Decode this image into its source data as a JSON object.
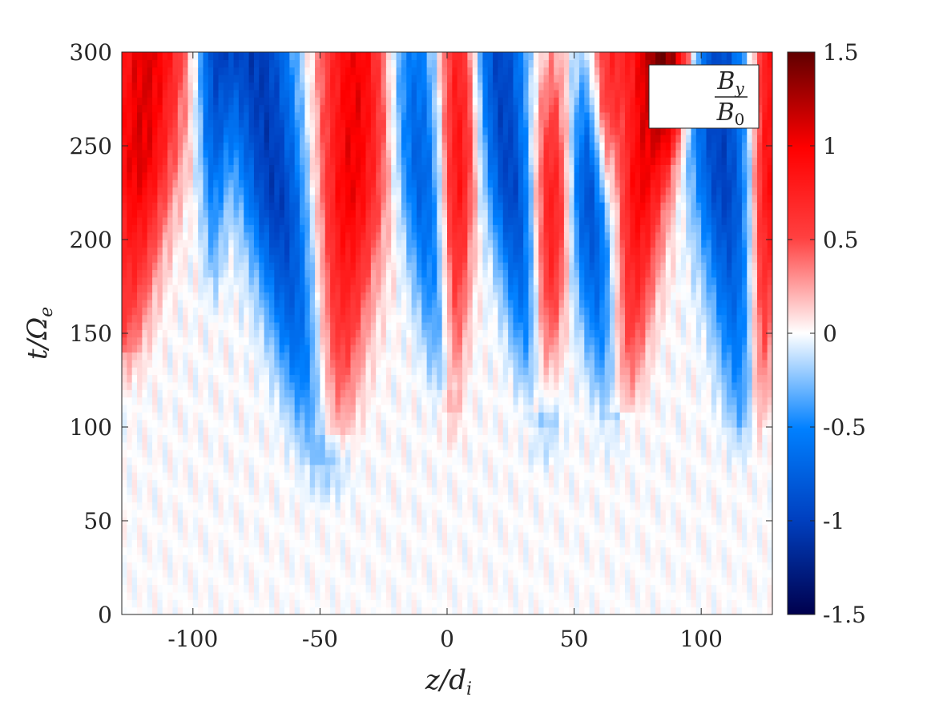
{
  "chart_data": {
    "type": "heatmap",
    "title": "",
    "legend_label": {
      "numerator": "B",
      "numerator_sub": "y",
      "denominator": "B",
      "denominator_sub": "0",
      "placement": "top-right"
    },
    "xlabel": {
      "main": "z/d",
      "sub": "i"
    },
    "ylabel": {
      "main": "t/Ω",
      "sub": "e"
    },
    "xlim": [
      -128,
      128
    ],
    "ylim": [
      0,
      300
    ],
    "x_ticks": [
      -100,
      -50,
      0,
      50,
      100
    ],
    "x_tick_labels": [
      "-100",
      "-50",
      "0",
      "50",
      "100"
    ],
    "y_ticks": [
      0,
      50,
      100,
      150,
      200,
      250,
      300
    ],
    "y_tick_labels": [
      "0",
      "50",
      "100",
      "150",
      "200",
      "250",
      "300"
    ],
    "colorbar": {
      "range": [
        -1.5,
        1.5
      ],
      "ticks": [
        -1.5,
        -1,
        -0.5,
        0,
        0.5,
        1,
        1.5
      ],
      "tick_labels": [
        "-1.5",
        "-1",
        "-0.5",
        "0",
        "0.5",
        "1",
        "1.5"
      ],
      "colormap": [
        "#00004d",
        "#0040c0",
        "#0080ff",
        "#ffffff",
        "#ff4040",
        "#ff0000",
        "#600000"
      ]
    },
    "features": [
      {
        "polarity": 1,
        "t_start": 140,
        "z_top": -118,
        "z_bottom": -128,
        "width": 14,
        "strength": 1.0
      },
      {
        "polarity": -1,
        "t_start": 80,
        "z_top": -75,
        "z_bottom": -48,
        "width": 14,
        "strength": 0.95
      },
      {
        "polarity": 1,
        "t_start": 95,
        "z_top": -35,
        "z_bottom": -46,
        "width": 14,
        "strength": 0.95
      },
      {
        "polarity": -1,
        "t_start": 120,
        "z_top": -15,
        "z_bottom": 0,
        "width": 10,
        "strength": 0.7
      },
      {
        "polarity": 1,
        "t_start": 110,
        "z_top": 5,
        "z_bottom": 2,
        "width": 7,
        "strength": 0.85
      },
      {
        "polarity": -1,
        "t_start": 100,
        "z_top": 20,
        "z_bottom": 38,
        "width": 10,
        "strength": 0.9
      },
      {
        "polarity": 1,
        "t_start": 110,
        "z_top": 45,
        "z_bottom": 36,
        "width": 9,
        "strength": 0.95
      },
      {
        "polarity": -1,
        "t_start": 105,
        "z_top": 50,
        "z_bottom": 66,
        "width": 11,
        "strength": 0.9
      },
      {
        "polarity": 1,
        "t_start": 110,
        "z_top": 80,
        "z_bottom": 68,
        "width": 11,
        "strength": 0.95
      },
      {
        "polarity": -1,
        "t_start": 100,
        "z_top": 105,
        "z_bottom": 118,
        "width": 12,
        "strength": 0.9
      },
      {
        "polarity": 1,
        "t_start": 100,
        "z_top": 128,
        "z_bottom": 122,
        "width": 7,
        "strength": 0.9
      },
      {
        "polarity": -1,
        "t_start": 180,
        "z_top": -92,
        "z_bottom": -92,
        "width": 6,
        "strength": 0.6
      },
      {
        "polarity": 1,
        "t_start": 220,
        "z_top": 62,
        "z_bottom": 62,
        "width": 6,
        "strength": 0.7
      },
      {
        "polarity": 1,
        "t_start": 240,
        "z_top": 90,
        "z_bottom": 86,
        "width": 8,
        "strength": 0.8
      }
    ]
  }
}
